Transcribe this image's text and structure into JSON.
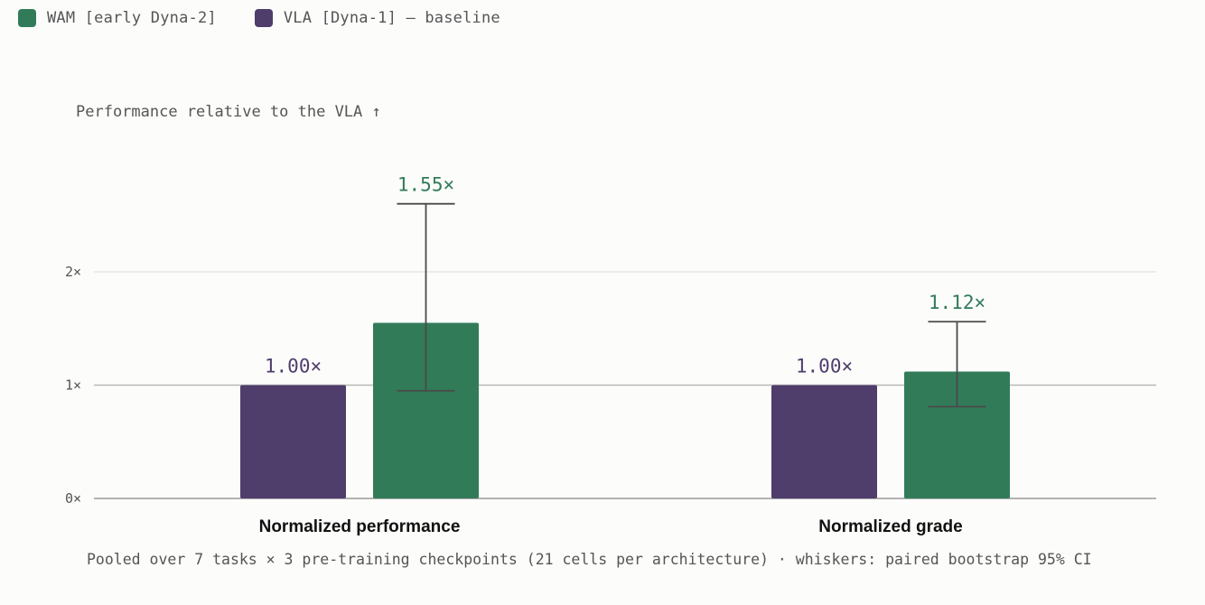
{
  "legend": [
    {
      "label": "WAM [early Dyna-2]",
      "color": "#327b59"
    },
    {
      "label": "VLA [Dyna-1] — baseline",
      "color": "#4f3d6b"
    }
  ],
  "chart_data": {
    "type": "bar",
    "ylabel": "Performance relative to the VLA ↑",
    "categories": [
      "Normalized performance",
      "Normalized grade"
    ],
    "series": [
      {
        "name": "VLA [Dyna-1] — baseline",
        "color": "#4f3d6b",
        "label_color": "#4f3d6b",
        "values": [
          1.0,
          1.0
        ],
        "labels": [
          "1.00×",
          "1.00×"
        ]
      },
      {
        "name": "WAM [early Dyna-2]",
        "color": "#327b59",
        "label_color": "#327b59",
        "values": [
          1.55,
          1.12
        ],
        "labels": [
          "1.55×",
          "1.12×"
        ],
        "ci_low": [
          0.95,
          0.81
        ],
        "ci_high": [
          2.6,
          1.56
        ]
      }
    ],
    "yticks": [
      0,
      1,
      2
    ],
    "ytick_labels": [
      "0×",
      "1×",
      "2×"
    ],
    "ylim": [
      0,
      2.6
    ],
    "grid": true,
    "legend_position": "top-left",
    "footnote": "Pooled over 7 tasks × 3 pre-training checkpoints (21 cells per architecture) · whiskers: paired bootstrap 95% CI"
  }
}
